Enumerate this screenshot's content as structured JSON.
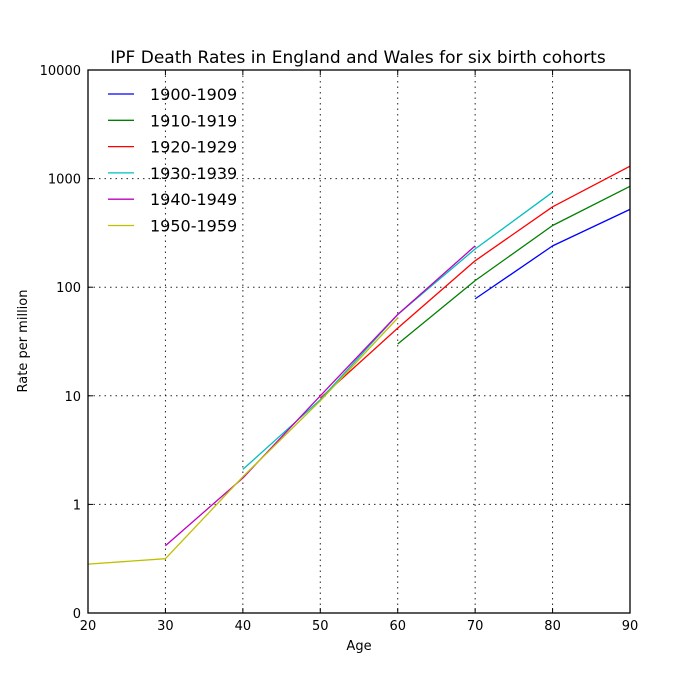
{
  "chart_data": {
    "type": "line",
    "title": "IPF Death Rates in England and Wales for six birth cohorts",
    "xlabel": "Age",
    "ylabel": "Rate per million",
    "xlim": [
      20,
      90
    ],
    "y_scale": "symlog",
    "x_ticks": [
      20,
      30,
      40,
      50,
      60,
      70,
      80,
      90
    ],
    "y_ticks": [
      {
        "value": 0,
        "label": "0"
      },
      {
        "value": 1,
        "label": "1"
      },
      {
        "value": 10,
        "label": "10"
      },
      {
        "value": 100,
        "label": "100"
      },
      {
        "value": 1000,
        "label": "1000"
      },
      {
        "value": 10000,
        "label": "10000"
      }
    ],
    "grid": true,
    "legend_position": "top-left",
    "series": [
      {
        "name": "1900-1909",
        "color": "#0000ff",
        "x": [
          70,
          80,
          90
        ],
        "y": [
          78,
          240,
          520
        ]
      },
      {
        "name": "1910-1919",
        "color": "#008000",
        "x": [
          60,
          70,
          80,
          90
        ],
        "y": [
          30,
          115,
          370,
          850
        ]
      },
      {
        "name": "1920-1929",
        "color": "#ff0000",
        "x": [
          50,
          60,
          70,
          80,
          90
        ],
        "y": [
          9.5,
          42,
          175,
          550,
          1300
        ]
      },
      {
        "name": "1930-1939",
        "color": "#00bfbf",
        "x": [
          40,
          50,
          60,
          70,
          80
        ],
        "y": [
          2.1,
          9.2,
          56,
          225,
          750
        ]
      },
      {
        "name": "1940-1949",
        "color": "#bf00bf",
        "x": [
          30,
          40,
          50,
          60,
          70
        ],
        "y": [
          0.62,
          1.75,
          10,
          56,
          240
        ]
      },
      {
        "name": "1950-1959",
        "color": "#bfbf00",
        "x": [
          20,
          30,
          40,
          50,
          60
        ],
        "y": [
          0.45,
          0.5,
          1.8,
          9,
          52
        ]
      }
    ]
  }
}
